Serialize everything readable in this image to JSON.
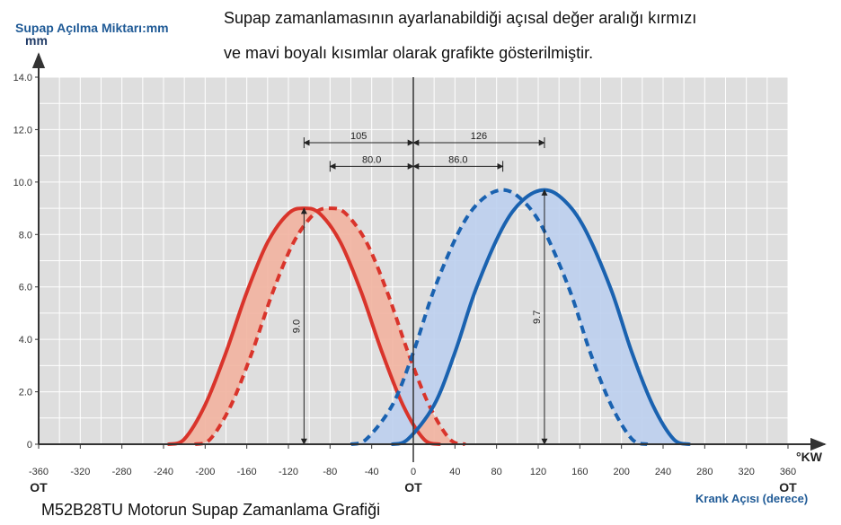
{
  "title_line1": "Supap zamanlamasının ayarlanabildiği açısal değer aralığı kırmızı",
  "title_line2": "ve mavi boyalı kısımlar olarak grafikte gösterilmiştir.",
  "caption": "M52B28TU Motorun Supap Zamanlama Grafiği",
  "chart_data": {
    "type": "line",
    "ylabel": "Supap Açılma  Miktarı:mm",
    "y_unit": "mm",
    "xlabel": "Krank Açısı (derece)",
    "x_unit": "°KW",
    "xlim": [
      -360,
      360
    ],
    "ylim": [
      0,
      14
    ],
    "x_ticks": [
      "-360",
      "-320",
      "-280",
      "-240",
      "-200",
      "-160",
      "-120",
      "-80",
      "-40",
      "0",
      "40",
      "80",
      "120",
      "160",
      "200",
      "240",
      "280",
      "320",
      "360"
    ],
    "y_ticks": [
      "0",
      "2.0",
      "4.0",
      "6.0",
      "8.0",
      "10.0",
      "12.0",
      "14.0"
    ],
    "x_extra_labels": [
      {
        "x": -360,
        "text": "OT"
      },
      {
        "x": 0,
        "text": "OT"
      },
      {
        "x": 360,
        "text": "OT"
      }
    ],
    "grid": true,
    "curves": [
      {
        "color": "#d9342b",
        "style": "solid",
        "fill": "#f2b3a0",
        "fill_with": 1,
        "points": [
          [
            -235,
            0
          ],
          [
            -220,
            0.2
          ],
          [
            -200,
            1.5
          ],
          [
            -180,
            3.5
          ],
          [
            -160,
            5.8
          ],
          [
            -140,
            7.7
          ],
          [
            -120,
            8.8
          ],
          [
            -105,
            9.0
          ],
          [
            -90,
            8.8
          ],
          [
            -70,
            7.7
          ],
          [
            -50,
            5.8
          ],
          [
            -30,
            3.5
          ],
          [
            -10,
            1.5
          ],
          [
            10,
            0.2
          ],
          [
            25,
            0
          ]
        ]
      },
      {
        "color": "#d9342b",
        "style": "dashed",
        "points": [
          [
            -210,
            0
          ],
          [
            -195,
            0.2
          ],
          [
            -175,
            1.5
          ],
          [
            -155,
            3.5
          ],
          [
            -135,
            5.8
          ],
          [
            -115,
            7.7
          ],
          [
            -95,
            8.8
          ],
          [
            -80,
            9.0
          ],
          [
            -65,
            8.8
          ],
          [
            -45,
            7.7
          ],
          [
            -25,
            5.8
          ],
          [
            -5,
            3.5
          ],
          [
            15,
            1.5
          ],
          [
            35,
            0.2
          ],
          [
            50,
            0
          ]
        ]
      },
      {
        "color": "#1a62b0",
        "style": "dashed",
        "fill": "#bccfee",
        "fill_with": 3,
        "points": [
          [
            -60,
            0
          ],
          [
            -45,
            0.2
          ],
          [
            -20,
            1.5
          ],
          [
            0,
            3.5
          ],
          [
            20,
            5.9
          ],
          [
            45,
            8.2
          ],
          [
            65,
            9.3
          ],
          [
            86,
            9.7
          ],
          [
            105,
            9.3
          ],
          [
            125,
            8.2
          ],
          [
            150,
            5.9
          ],
          [
            170,
            3.5
          ],
          [
            190,
            1.5
          ],
          [
            210,
            0.2
          ],
          [
            225,
            0
          ]
        ]
      },
      {
        "color": "#1a62b0",
        "style": "solid",
        "points": [
          [
            -20,
            0
          ],
          [
            -5,
            0.2
          ],
          [
            20,
            1.5
          ],
          [
            40,
            3.5
          ],
          [
            60,
            5.9
          ],
          [
            85,
            8.2
          ],
          [
            105,
            9.3
          ],
          [
            126,
            9.7
          ],
          [
            145,
            9.3
          ],
          [
            165,
            8.2
          ],
          [
            190,
            5.9
          ],
          [
            210,
            3.5
          ],
          [
            230,
            1.5
          ],
          [
            250,
            0.2
          ],
          [
            265,
            0
          ]
        ]
      }
    ],
    "annotations": [
      {
        "kind": "h",
        "x1": -105,
        "x2": 0,
        "y": 11.5,
        "label": "105"
      },
      {
        "kind": "h",
        "x1": -80,
        "x2": 0,
        "y": 10.6,
        "label": "80.0"
      },
      {
        "kind": "h",
        "x1": 0,
        "x2": 126,
        "y": 11.5,
        "label": "126"
      },
      {
        "kind": "h",
        "x1": 0,
        "x2": 86,
        "y": 10.6,
        "label": "86.0"
      },
      {
        "kind": "v",
        "x": -105,
        "y1": 0,
        "y2": 9.0,
        "label": "9.0"
      },
      {
        "kind": "v",
        "x": 126,
        "y1": 0,
        "y2": 9.7,
        "label": "9.7"
      }
    ]
  }
}
